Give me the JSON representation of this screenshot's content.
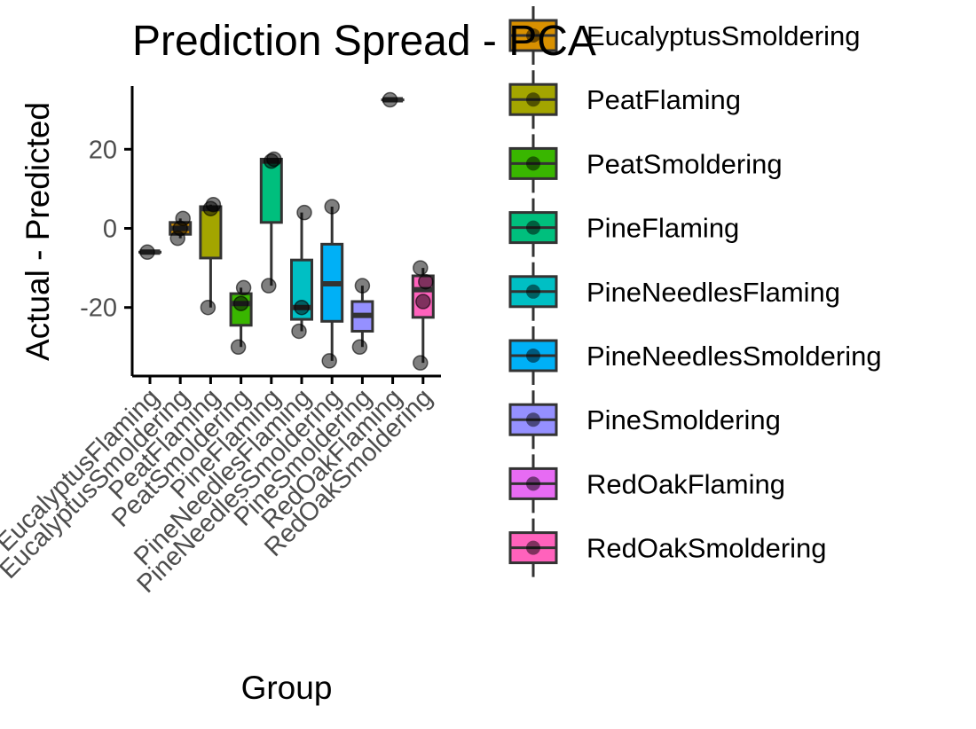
{
  "chart_data": {
    "type": "box",
    "title": "Prediction Spread - PCA",
    "xlabel": "Group",
    "ylabel": "Actual - Predicted",
    "ylim": [
      -38,
      36
    ],
    "yticks": [
      -20,
      0,
      20
    ],
    "grid": false,
    "legend_position": "right",
    "categories": [
      "EucalyptusFlaming",
      "EucalyptusSmoldering",
      "PeatFlaming",
      "PeatSmoldering",
      "PineFlaming",
      "PineNeedlesFlaming",
      "PineNeedlesSmoldering",
      "PineSmoldering",
      "RedOakFlaming",
      "RedOakSmoldering"
    ],
    "colors": [
      "#F8766D",
      "#D89000",
      "#A3A500",
      "#39B600",
      "#00BF7D",
      "#00BFC4",
      "#00B0F6",
      "#9590FF",
      "#E76BF3",
      "#FF62BC"
    ],
    "series": [
      {
        "q1": -6,
        "median": -6,
        "q3": -6,
        "whisker_low": -6,
        "whisker_high": -6,
        "points": [
          -6
        ]
      },
      {
        "q1": -1.5,
        "median": 0,
        "q3": 1.5,
        "whisker_low": -2.5,
        "whisker_high": 2.5,
        "points": [
          -2.5,
          0,
          2.5
        ]
      },
      {
        "q1": -7.5,
        "median": 5,
        "q3": 5.5,
        "whisker_low": -20,
        "whisker_high": 6,
        "points": [
          -20,
          5,
          6
        ]
      },
      {
        "q1": -24.5,
        "median": -19,
        "q3": -16.5,
        "whisker_low": -30,
        "whisker_high": -15,
        "points": [
          -30,
          -19,
          -15
        ]
      },
      {
        "q1": 1.5,
        "median": 17,
        "q3": 17.5,
        "whisker_low": -14.5,
        "whisker_high": 17.5,
        "points": [
          -14.5,
          17,
          17.5
        ]
      },
      {
        "q1": -23,
        "median": -20,
        "q3": -8,
        "whisker_low": -26,
        "whisker_high": 4,
        "points": [
          -26,
          -20,
          4
        ]
      },
      {
        "q1": -23.5,
        "median": -14,
        "q3": -4,
        "whisker_low": -33.5,
        "whisker_high": 5.5,
        "points": [
          -33.5,
          5.5
        ]
      },
      {
        "q1": -26,
        "median": -22,
        "q3": -18.5,
        "whisker_low": -30,
        "whisker_high": -14.5,
        "points": [
          -30,
          -14.5
        ]
      },
      {
        "q1": 32.5,
        "median": 32.5,
        "q3": 32.5,
        "whisker_low": 32.5,
        "whisker_high": 32.5,
        "points": [
          32.5
        ]
      },
      {
        "q1": -22.5,
        "median": -15.5,
        "q3": -12,
        "whisker_low": -34,
        "whisker_high": -10,
        "points": [
          -34,
          -18.5,
          -13.5,
          -10
        ]
      }
    ],
    "legend": {
      "entries": [
        "EucalyptusSmoldering",
        "PeatFlaming",
        "PeatSmoldering",
        "PineFlaming",
        "PineNeedlesFlaming",
        "PineNeedlesSmoldering",
        "PineSmoldering",
        "RedOakFlaming",
        "RedOakSmoldering"
      ],
      "colors": [
        "#D89000",
        "#A3A500",
        "#39B600",
        "#00BF7D",
        "#00BFC4",
        "#00B0F6",
        "#9590FF",
        "#E76BF3",
        "#FF62BC"
      ]
    }
  }
}
